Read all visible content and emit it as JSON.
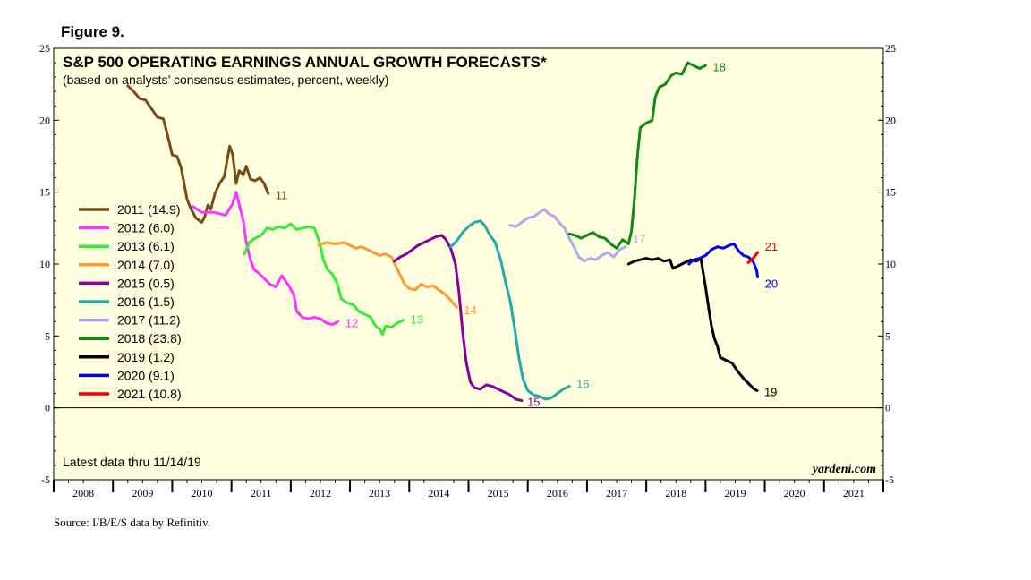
{
  "figure_label": "Figure 9.",
  "source": "Source: I/B/E/S data by Refinitiv.",
  "latest": "Latest data thru 11/14/19",
  "brand": "yardeni.com",
  "colors": {
    "background": "#ffffe0",
    "s2011": "#7b4a12",
    "s2012": "#ff33ff",
    "s2013": "#33ee33",
    "s2014": "#ff9933",
    "s2015": "#880099",
    "s2016": "#22aaaa",
    "s2017": "#aaaaee",
    "s2018": "#118811",
    "s2019": "#000000",
    "s2020": "#0000ee",
    "s2021": "#ee0000"
  },
  "chart_data": {
    "type": "line",
    "title": "S&P 500 OPERATING EARNINGS ANNUAL GROWTH FORECASTS*",
    "subtitle": "(based on analysts’ consensus estimates, percent, weekly)",
    "xlabel": "",
    "ylabel": "",
    "xlim": [
      2008,
      2022
    ],
    "ylim": [
      -5,
      25
    ],
    "x_ticks": [
      "2008",
      "2009",
      "2010",
      "2011",
      "2012",
      "2013",
      "2014",
      "2015",
      "2016",
      "2017",
      "2018",
      "2019",
      "2020",
      "2021"
    ],
    "y_ticks": [
      "25",
      "20",
      "15",
      "10",
      "5",
      "0",
      "-5"
    ],
    "y_tick_values": [
      25,
      20,
      15,
      10,
      5,
      0,
      -5
    ],
    "series": [
      {
        "name": "2011",
        "legend": "2011 (14.9)",
        "end_label": "11",
        "color_key": "s2011",
        "points": [
          [
            2009.25,
            22.4
          ],
          [
            2009.35,
            22.0
          ],
          [
            2009.45,
            21.5
          ],
          [
            2009.55,
            21.4
          ],
          [
            2009.65,
            20.8
          ],
          [
            2009.75,
            20.2
          ],
          [
            2009.85,
            20.1
          ],
          [
            2009.92,
            19.0
          ],
          [
            2010.0,
            17.6
          ],
          [
            2010.08,
            17.5
          ],
          [
            2010.15,
            16.7
          ],
          [
            2010.25,
            14.5
          ],
          [
            2010.32,
            13.8
          ],
          [
            2010.4,
            13.2
          ],
          [
            2010.5,
            12.9
          ],
          [
            2010.55,
            13.3
          ],
          [
            2010.6,
            14.1
          ],
          [
            2010.65,
            13.8
          ],
          [
            2010.72,
            14.9
          ],
          [
            2010.8,
            15.6
          ],
          [
            2010.88,
            16.1
          ],
          [
            2010.93,
            17.3
          ],
          [
            2010.97,
            18.2
          ],
          [
            2011.02,
            17.6
          ],
          [
            2011.08,
            15.6
          ],
          [
            2011.13,
            16.5
          ],
          [
            2011.2,
            16.2
          ],
          [
            2011.25,
            16.8
          ],
          [
            2011.32,
            15.9
          ],
          [
            2011.4,
            15.8
          ],
          [
            2011.48,
            16.0
          ],
          [
            2011.55,
            15.6
          ],
          [
            2011.62,
            14.9
          ]
        ]
      },
      {
        "name": "2012",
        "legend": "2012 (6.0)",
        "end_label": "12",
        "color_key": "s2012",
        "points": [
          [
            2010.35,
            14.0
          ],
          [
            2010.5,
            13.6
          ],
          [
            2010.7,
            13.6
          ],
          [
            2010.9,
            13.4
          ],
          [
            2011.02,
            14.2
          ],
          [
            2011.08,
            15.0
          ],
          [
            2011.15,
            13.8
          ],
          [
            2011.2,
            13.0
          ],
          [
            2011.25,
            11.5
          ],
          [
            2011.32,
            10.3
          ],
          [
            2011.38,
            9.6
          ],
          [
            2011.45,
            9.4
          ],
          [
            2011.55,
            9.0
          ],
          [
            2011.65,
            8.6
          ],
          [
            2011.75,
            8.4
          ],
          [
            2011.85,
            9.2
          ],
          [
            2011.95,
            8.6
          ],
          [
            2012.05,
            7.9
          ],
          [
            2012.1,
            6.7
          ],
          [
            2012.2,
            6.3
          ],
          [
            2012.3,
            6.2
          ],
          [
            2012.4,
            6.3
          ],
          [
            2012.5,
            6.2
          ],
          [
            2012.6,
            5.9
          ],
          [
            2012.7,
            5.8
          ],
          [
            2012.8,
            6.0
          ]
        ]
      },
      {
        "name": "2013",
        "legend": "2013 (6.1)",
        "end_label": "13",
        "color_key": "s2013",
        "points": [
          [
            2011.22,
            10.7
          ],
          [
            2011.3,
            11.5
          ],
          [
            2011.4,
            11.8
          ],
          [
            2011.5,
            12.0
          ],
          [
            2011.6,
            12.5
          ],
          [
            2011.7,
            12.4
          ],
          [
            2011.8,
            12.6
          ],
          [
            2011.9,
            12.5
          ],
          [
            2012.0,
            12.8
          ],
          [
            2012.1,
            12.4
          ],
          [
            2012.2,
            12.5
          ],
          [
            2012.3,
            12.6
          ],
          [
            2012.4,
            12.5
          ],
          [
            2012.48,
            11.6
          ],
          [
            2012.55,
            10.3
          ],
          [
            2012.62,
            9.6
          ],
          [
            2012.7,
            9.3
          ],
          [
            2012.78,
            8.7
          ],
          [
            2012.85,
            7.6
          ],
          [
            2012.95,
            7.3
          ],
          [
            2013.05,
            7.2
          ],
          [
            2013.15,
            6.7
          ],
          [
            2013.25,
            6.5
          ],
          [
            2013.35,
            6.3
          ],
          [
            2013.4,
            5.9
          ],
          [
            2013.45,
            5.6
          ],
          [
            2013.5,
            5.5
          ],
          [
            2013.55,
            5.1
          ],
          [
            2013.6,
            5.7
          ],
          [
            2013.7,
            5.6
          ],
          [
            2013.8,
            5.9
          ],
          [
            2013.9,
            6.1
          ]
        ]
      },
      {
        "name": "2014",
        "legend": "2014 (7.0)",
        "end_label": "14",
        "color_key": "s2014",
        "points": [
          [
            2012.47,
            11.3
          ],
          [
            2012.6,
            11.5
          ],
          [
            2012.75,
            11.4
          ],
          [
            2012.9,
            11.5
          ],
          [
            2013.0,
            11.3
          ],
          [
            2013.1,
            11.1
          ],
          [
            2013.2,
            11.2
          ],
          [
            2013.3,
            11.0
          ],
          [
            2013.4,
            10.8
          ],
          [
            2013.5,
            10.6
          ],
          [
            2013.6,
            10.7
          ],
          [
            2013.7,
            10.5
          ],
          [
            2013.78,
            9.8
          ],
          [
            2013.85,
            9.2
          ],
          [
            2013.92,
            8.6
          ],
          [
            2014.0,
            8.3
          ],
          [
            2014.1,
            8.2
          ],
          [
            2014.2,
            8.6
          ],
          [
            2014.3,
            8.4
          ],
          [
            2014.4,
            8.5
          ],
          [
            2014.5,
            8.2
          ],
          [
            2014.6,
            7.9
          ],
          [
            2014.7,
            7.5
          ],
          [
            2014.8,
            7.0
          ]
        ]
      },
      {
        "name": "2015",
        "legend": "2015 (0.5)",
        "end_label": "15",
        "color_key": "s2015",
        "points": [
          [
            2013.75,
            10.2
          ],
          [
            2013.85,
            10.5
          ],
          [
            2013.95,
            10.7
          ],
          [
            2014.05,
            11.0
          ],
          [
            2014.15,
            11.3
          ],
          [
            2014.25,
            11.5
          ],
          [
            2014.35,
            11.7
          ],
          [
            2014.45,
            11.9
          ],
          [
            2014.55,
            12.0
          ],
          [
            2014.62,
            11.7
          ],
          [
            2014.7,
            11.1
          ],
          [
            2014.78,
            10.0
          ],
          [
            2014.84,
            8.0
          ],
          [
            2014.9,
            5.3
          ],
          [
            2014.96,
            3.2
          ],
          [
            2015.03,
            1.8
          ],
          [
            2015.1,
            1.4
          ],
          [
            2015.2,
            1.3
          ],
          [
            2015.3,
            1.6
          ],
          [
            2015.4,
            1.5
          ],
          [
            2015.5,
            1.3
          ],
          [
            2015.6,
            1.1
          ],
          [
            2015.7,
            0.9
          ],
          [
            2015.8,
            0.6
          ],
          [
            2015.9,
            0.5
          ]
        ]
      },
      {
        "name": "2016",
        "legend": "2016 (1.5)",
        "end_label": "16",
        "color_key": "s2016",
        "points": [
          [
            2014.7,
            11.2
          ],
          [
            2014.8,
            11.6
          ],
          [
            2014.9,
            12.2
          ],
          [
            2015.0,
            12.6
          ],
          [
            2015.1,
            12.9
          ],
          [
            2015.2,
            13.0
          ],
          [
            2015.27,
            12.7
          ],
          [
            2015.35,
            12.1
          ],
          [
            2015.45,
            11.5
          ],
          [
            2015.55,
            10.2
          ],
          [
            2015.62,
            8.8
          ],
          [
            2015.7,
            7.5
          ],
          [
            2015.78,
            5.5
          ],
          [
            2015.85,
            3.5
          ],
          [
            2015.92,
            2.0
          ],
          [
            2016.0,
            1.2
          ],
          [
            2016.1,
            0.9
          ],
          [
            2016.2,
            0.8
          ],
          [
            2016.3,
            0.6
          ],
          [
            2016.4,
            0.7
          ],
          [
            2016.5,
            1.0
          ],
          [
            2016.6,
            1.3
          ],
          [
            2016.7,
            1.5
          ]
        ]
      },
      {
        "name": "2017",
        "legend": "2017 (11.2)",
        "end_label": "17",
        "color_key": "s2017",
        "points": [
          [
            2015.7,
            12.7
          ],
          [
            2015.8,
            12.6
          ],
          [
            2015.9,
            12.9
          ],
          [
            2016.0,
            13.2
          ],
          [
            2016.1,
            13.3
          ],
          [
            2016.2,
            13.6
          ],
          [
            2016.28,
            13.8
          ],
          [
            2016.35,
            13.5
          ],
          [
            2016.45,
            13.3
          ],
          [
            2016.55,
            12.8
          ],
          [
            2016.62,
            12.5
          ],
          [
            2016.7,
            11.8
          ],
          [
            2016.78,
            11.2
          ],
          [
            2016.86,
            10.5
          ],
          [
            2016.95,
            10.2
          ],
          [
            2017.05,
            10.4
          ],
          [
            2017.15,
            10.3
          ],
          [
            2017.25,
            10.6
          ],
          [
            2017.35,
            10.8
          ],
          [
            2017.45,
            10.5
          ],
          [
            2017.55,
            11.0
          ],
          [
            2017.65,
            11.2
          ]
        ]
      },
      {
        "name": "2018",
        "legend": "2018 (23.8)",
        "end_label": "18",
        "color_key": "s2018",
        "points": [
          [
            2016.7,
            12.1
          ],
          [
            2016.8,
            12.0
          ],
          [
            2016.9,
            11.8
          ],
          [
            2017.0,
            12.0
          ],
          [
            2017.1,
            12.2
          ],
          [
            2017.2,
            11.9
          ],
          [
            2017.3,
            11.8
          ],
          [
            2017.4,
            11.4
          ],
          [
            2017.5,
            11.1
          ],
          [
            2017.6,
            11.7
          ],
          [
            2017.7,
            11.4
          ],
          [
            2017.75,
            12.3
          ],
          [
            2017.8,
            14.5
          ],
          [
            2017.85,
            17.5
          ],
          [
            2017.9,
            19.5
          ],
          [
            2018.0,
            19.8
          ],
          [
            2018.1,
            20.0
          ],
          [
            2018.15,
            21.6
          ],
          [
            2018.22,
            22.3
          ],
          [
            2018.32,
            22.5
          ],
          [
            2018.42,
            23.1
          ],
          [
            2018.5,
            23.3
          ],
          [
            2018.6,
            23.2
          ],
          [
            2018.7,
            24.0
          ],
          [
            2018.8,
            23.8
          ],
          [
            2018.9,
            23.6
          ],
          [
            2019.0,
            23.8
          ]
        ]
      },
      {
        "name": "2019",
        "legend": "2019 (1.2)",
        "end_label": "19",
        "color_key": "s2019",
        "points": [
          [
            2017.7,
            10.0
          ],
          [
            2017.8,
            10.2
          ],
          [
            2017.9,
            10.3
          ],
          [
            2018.0,
            10.4
          ],
          [
            2018.1,
            10.3
          ],
          [
            2018.2,
            10.4
          ],
          [
            2018.3,
            10.2
          ],
          [
            2018.4,
            10.3
          ],
          [
            2018.45,
            9.7
          ],
          [
            2018.55,
            9.9
          ],
          [
            2018.65,
            10.1
          ],
          [
            2018.75,
            10.3
          ],
          [
            2018.85,
            10.2
          ],
          [
            2018.92,
            10.4
          ],
          [
            2019.0,
            8.4
          ],
          [
            2019.05,
            7.0
          ],
          [
            2019.1,
            5.7
          ],
          [
            2019.15,
            4.8
          ],
          [
            2019.2,
            4.3
          ],
          [
            2019.25,
            3.5
          ],
          [
            2019.35,
            3.3
          ],
          [
            2019.45,
            3.1
          ],
          [
            2019.55,
            2.5
          ],
          [
            2019.65,
            2.0
          ],
          [
            2019.75,
            1.6
          ],
          [
            2019.82,
            1.3
          ],
          [
            2019.87,
            1.2
          ]
        ]
      },
      {
        "name": "2020",
        "legend": "2020 (9.1)",
        "end_label": "20",
        "color_key": "s2020",
        "points": [
          [
            2018.72,
            10.0
          ],
          [
            2018.8,
            10.3
          ],
          [
            2018.9,
            10.4
          ],
          [
            2019.0,
            10.6
          ],
          [
            2019.1,
            11.0
          ],
          [
            2019.2,
            11.2
          ],
          [
            2019.3,
            11.1
          ],
          [
            2019.4,
            11.3
          ],
          [
            2019.48,
            11.4
          ],
          [
            2019.56,
            10.9
          ],
          [
            2019.64,
            10.6
          ],
          [
            2019.72,
            10.5
          ],
          [
            2019.8,
            10.2
          ],
          [
            2019.86,
            9.6
          ],
          [
            2019.88,
            9.1
          ]
        ]
      },
      {
        "name": "2021",
        "legend": "2021 (10.8)",
        "end_label": "21",
        "color_key": "s2021",
        "points": [
          [
            2019.72,
            10.1
          ],
          [
            2019.78,
            10.3
          ],
          [
            2019.84,
            10.6
          ],
          [
            2019.88,
            10.8
          ]
        ]
      }
    ],
    "legend": [
      "2011 (14.9)",
      "2012 (6.0)",
      "2013 (6.1)",
      "2014 (7.0)",
      "2015 (0.5)",
      "2016 (1.5)",
      "2017 (11.2)",
      "2018 (23.8)",
      "2019 (1.2)",
      "2020 (9.1)",
      "2021 (10.8)"
    ],
    "legend_position": "left-middle"
  }
}
